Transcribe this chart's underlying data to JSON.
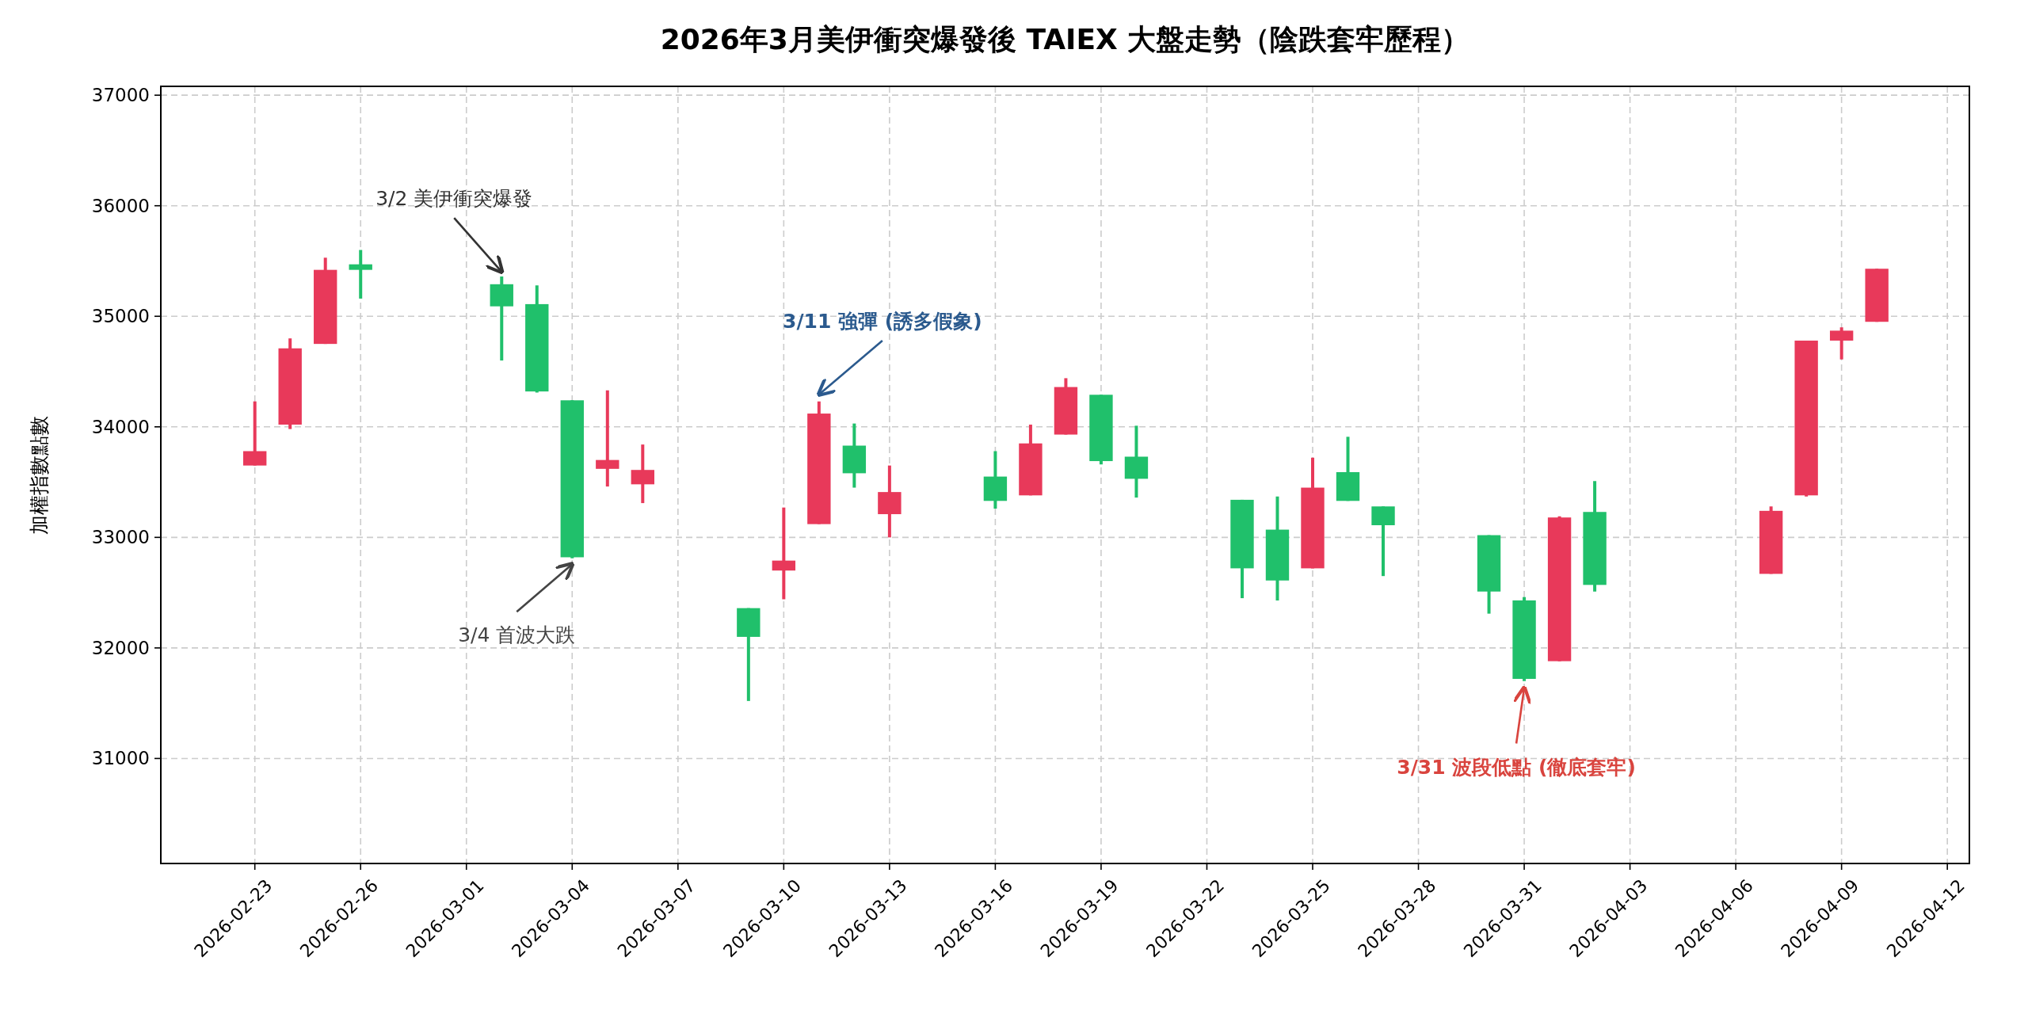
{
  "chart_data": {
    "type": "candlestick",
    "title": "2026年3月美伊衝突爆發後 TAIEX 大盤走勢（陰跌套牢歷程）",
    "ylabel": "加權指數點數",
    "x": [
      "2026-02-23",
      "2026-02-24",
      "2026-02-25",
      "2026-02-26",
      "2026-03-02",
      "2026-03-03",
      "2026-03-04",
      "2026-03-05",
      "2026-03-06",
      "2026-03-09",
      "2026-03-10",
      "2026-03-11",
      "2026-03-12",
      "2026-03-13",
      "2026-03-16",
      "2026-03-17",
      "2026-03-18",
      "2026-03-19",
      "2026-03-20",
      "2026-03-23",
      "2026-03-24",
      "2026-03-25",
      "2026-03-26",
      "2026-03-27",
      "2026-03-30",
      "2026-03-31",
      "2026-04-01",
      "2026-04-02",
      "2026-04-07",
      "2026-04-08",
      "2026-04-09",
      "2026-04-10"
    ],
    "ohlc": [
      [
        33650,
        34230,
        33650,
        33780
      ],
      [
        34020,
        34800,
        33980,
        34710
      ],
      [
        34750,
        35530,
        34750,
        35420
      ],
      [
        35470,
        35600,
        35160,
        35420
      ],
      [
        35290,
        35360,
        34600,
        35090
      ],
      [
        35110,
        35280,
        34310,
        34320
      ],
      [
        34240,
        34240,
        32810,
        32820
      ],
      [
        33620,
        34330,
        33460,
        33700
      ],
      [
        33480,
        33840,
        33310,
        33610
      ],
      [
        32360,
        32360,
        31520,
        32100
      ],
      [
        32700,
        33270,
        32440,
        32790
      ],
      [
        33120,
        34230,
        33120,
        34120
      ],
      [
        33830,
        34030,
        33450,
        33580
      ],
      [
        33210,
        33650,
        33000,
        33410
      ],
      [
        33550,
        33780,
        33260,
        33330
      ],
      [
        33380,
        34020,
        33380,
        33850
      ],
      [
        33930,
        34440,
        33930,
        34360
      ],
      [
        34290,
        34290,
        33660,
        33690
      ],
      [
        33730,
        34010,
        33360,
        33530
      ],
      [
        33340,
        33340,
        32450,
        32720
      ],
      [
        33070,
        33370,
        32430,
        32610
      ],
      [
        32720,
        33720,
        32720,
        33450
      ],
      [
        33590,
        33910,
        33330,
        33330
      ],
      [
        33280,
        33280,
        32650,
        33110
      ],
      [
        33020,
        33020,
        32310,
        32510
      ],
      [
        32430,
        32460,
        31700,
        31720
      ],
      [
        31880,
        33190,
        31880,
        33180
      ],
      [
        33230,
        33510,
        32510,
        32570
      ],
      [
        32670,
        33280,
        32670,
        33240
      ],
      [
        33380,
        34780,
        33370,
        34780
      ],
      [
        34780,
        34900,
        34610,
        34870
      ],
      [
        34950,
        35430,
        34950,
        35430
      ]
    ],
    "colors": [
      "#e8395a",
      "#e8395a",
      "#e8395a",
      "#20c06b",
      "#20c06b",
      "#20c06b",
      "#20c06b",
      "#e8395a",
      "#e8395a",
      "#20c06b",
      "#e8395a",
      "#e8395a",
      "#20c06b",
      "#e8395a",
      "#20c06b",
      "#e8395a",
      "#e8395a",
      "#20c06b",
      "#20c06b",
      "#20c06b",
      "#20c06b",
      "#e8395a",
      "#20c06b",
      "#20c06b",
      "#20c06b",
      "#20c06b",
      "#e8395a",
      "#20c06b",
      "#e8395a",
      "#e8395a",
      "#e8395a",
      "#e8395a"
    ],
    "xlim": [
      "2026-02-20T08:00",
      "2026-04-12T15:00"
    ],
    "xticks": [
      "2026-02-23",
      "2026-02-26",
      "2026-03-01",
      "2026-03-04",
      "2026-03-07",
      "2026-03-10",
      "2026-03-13",
      "2026-03-16",
      "2026-03-19",
      "2026-03-22",
      "2026-03-25",
      "2026-03-28",
      "2026-03-31",
      "2026-04-03",
      "2026-04-06",
      "2026-04-09",
      "2026-04-12"
    ],
    "ylim": [
      30050,
      37080
    ],
    "yticks": [
      31000,
      32000,
      33000,
      34000,
      35000,
      36000,
      37000
    ],
    "grid": true,
    "annotations": [
      {
        "text": "3/2 美伊衝突爆發",
        "x": "2026-03-02",
        "y": 35360
      },
      {
        "text": "3/4 首波大跌",
        "x": "2026-03-04",
        "y": 32800
      },
      {
        "text": "3/11 強彈 (誘多假象)",
        "x": "2026-03-11",
        "y": 34250
      },
      {
        "text": "3/31 波段低點 (徹底套牢)",
        "x": "2026-03-31",
        "y": 31680
      }
    ]
  }
}
